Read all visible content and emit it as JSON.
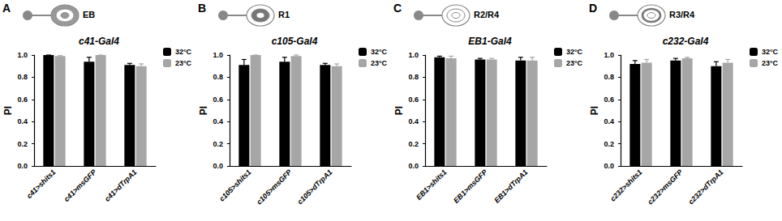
{
  "chart_data": [
    {
      "type": "bar",
      "title": "c41-Gal4",
      "subtitle": "EB",
      "annotations": [
        "A"
      ],
      "y_label": "PI",
      "categories": [
        "c41>shits1",
        "c41>msGFP",
        "c41>dTrpA1"
      ],
      "series": [
        {
          "name": "32°C",
          "color": "#000000",
          "values": [
            1.0,
            0.94,
            0.91
          ],
          "errors": [
            0.0,
            0.04,
            0.015
          ]
        },
        {
          "name": "23°C",
          "color": "#a6a6a6",
          "values": [
            0.99,
            1.0,
            0.9
          ],
          "errors": [
            0.005,
            0.0,
            0.02
          ]
        }
      ],
      "ylim": [
        0,
        1
      ],
      "yticks": [
        {
          "value": 0,
          "label": "0.0"
        },
        {
          "value": 0.2,
          "label": "0.2"
        },
        {
          "value": 0.4,
          "label": "0.4"
        },
        {
          "value": 0.6,
          "label": "0.6"
        },
        {
          "value": 0.8,
          "label": "0.8"
        },
        {
          "value": 1,
          "label": "1.0"
        }
      ],
      "grid": false,
      "legend": "top-right"
    },
    {
      "type": "bar",
      "title": "c105-Gal4",
      "subtitle": "R1",
      "annotations": [
        "B"
      ],
      "y_label": "PI",
      "categories": [
        "c105>shits1",
        "c105>msGFP",
        "c105>dTrpA1"
      ],
      "series": [
        {
          "name": "32°C",
          "color": "#000000",
          "values": [
            0.91,
            0.94,
            0.91
          ],
          "errors": [
            0.05,
            0.04,
            0.015
          ]
        },
        {
          "name": "23°C",
          "color": "#a6a6a6",
          "values": [
            1.0,
            0.99,
            0.9
          ],
          "errors": [
            0.0,
            0.01,
            0.02
          ]
        }
      ],
      "ylim": [
        0,
        1
      ],
      "yticks": [
        {
          "value": 0,
          "label": "0.0"
        },
        {
          "value": 0.2,
          "label": "0.2"
        },
        {
          "value": 0.4,
          "label": "0.4"
        },
        {
          "value": 0.6,
          "label": "0.6"
        },
        {
          "value": 0.8,
          "label": "0.8"
        },
        {
          "value": 1,
          "label": "1.0"
        }
      ],
      "grid": false,
      "legend": "top-right"
    },
    {
      "type": "bar",
      "title": "EB1-Gal4",
      "subtitle": "R2/R4",
      "annotations": [
        "C"
      ],
      "y_label": "PI",
      "categories": [
        "EB1>shits1",
        "EB1>msGFP",
        "EB1>dTrpA1"
      ],
      "series": [
        {
          "name": "32°C",
          "color": "#000000",
          "values": [
            0.98,
            0.96,
            0.95
          ],
          "errors": [
            0.01,
            0.01,
            0.03
          ]
        },
        {
          "name": "23°C",
          "color": "#a6a6a6",
          "values": [
            0.97,
            0.96,
            0.95
          ],
          "errors": [
            0.02,
            0.01,
            0.03
          ]
        }
      ],
      "ylim": [
        0,
        1
      ],
      "yticks": [
        {
          "value": 0,
          "label": "0.0"
        },
        {
          "value": 0.2,
          "label": "0.2"
        },
        {
          "value": 0.4,
          "label": "0.4"
        },
        {
          "value": 0.6,
          "label": "0.6"
        },
        {
          "value": 0.8,
          "label": "0.8"
        },
        {
          "value": 1,
          "label": "1.0"
        }
      ],
      "grid": false,
      "legend": "top-right"
    },
    {
      "type": "bar",
      "title": "c232-Gal4",
      "subtitle": "R3/R4",
      "annotations": [
        "D"
      ],
      "y_label": "PI",
      "categories": [
        "c232>shits1",
        "c232>msGFP",
        "c232>dTrpA1"
      ],
      "series": [
        {
          "name": "32°C",
          "color": "#000000",
          "values": [
            0.92,
            0.95,
            0.9
          ],
          "errors": [
            0.03,
            0.02,
            0.04
          ]
        },
        {
          "name": "23°C",
          "color": "#a6a6a6",
          "values": [
            0.93,
            0.97,
            0.93
          ],
          "errors": [
            0.03,
            0.01,
            0.03
          ]
        }
      ],
      "ylim": [
        0,
        1
      ],
      "yticks": [
        {
          "value": 0,
          "label": "0.0"
        },
        {
          "value": 0.2,
          "label": "0.2"
        },
        {
          "value": 0.4,
          "label": "0.4"
        },
        {
          "value": 0.6,
          "label": "0.6"
        },
        {
          "value": 0.8,
          "label": "0.8"
        },
        {
          "value": 1,
          "label": "1.0"
        }
      ],
      "grid": false,
      "legend": "top-right"
    }
  ]
}
